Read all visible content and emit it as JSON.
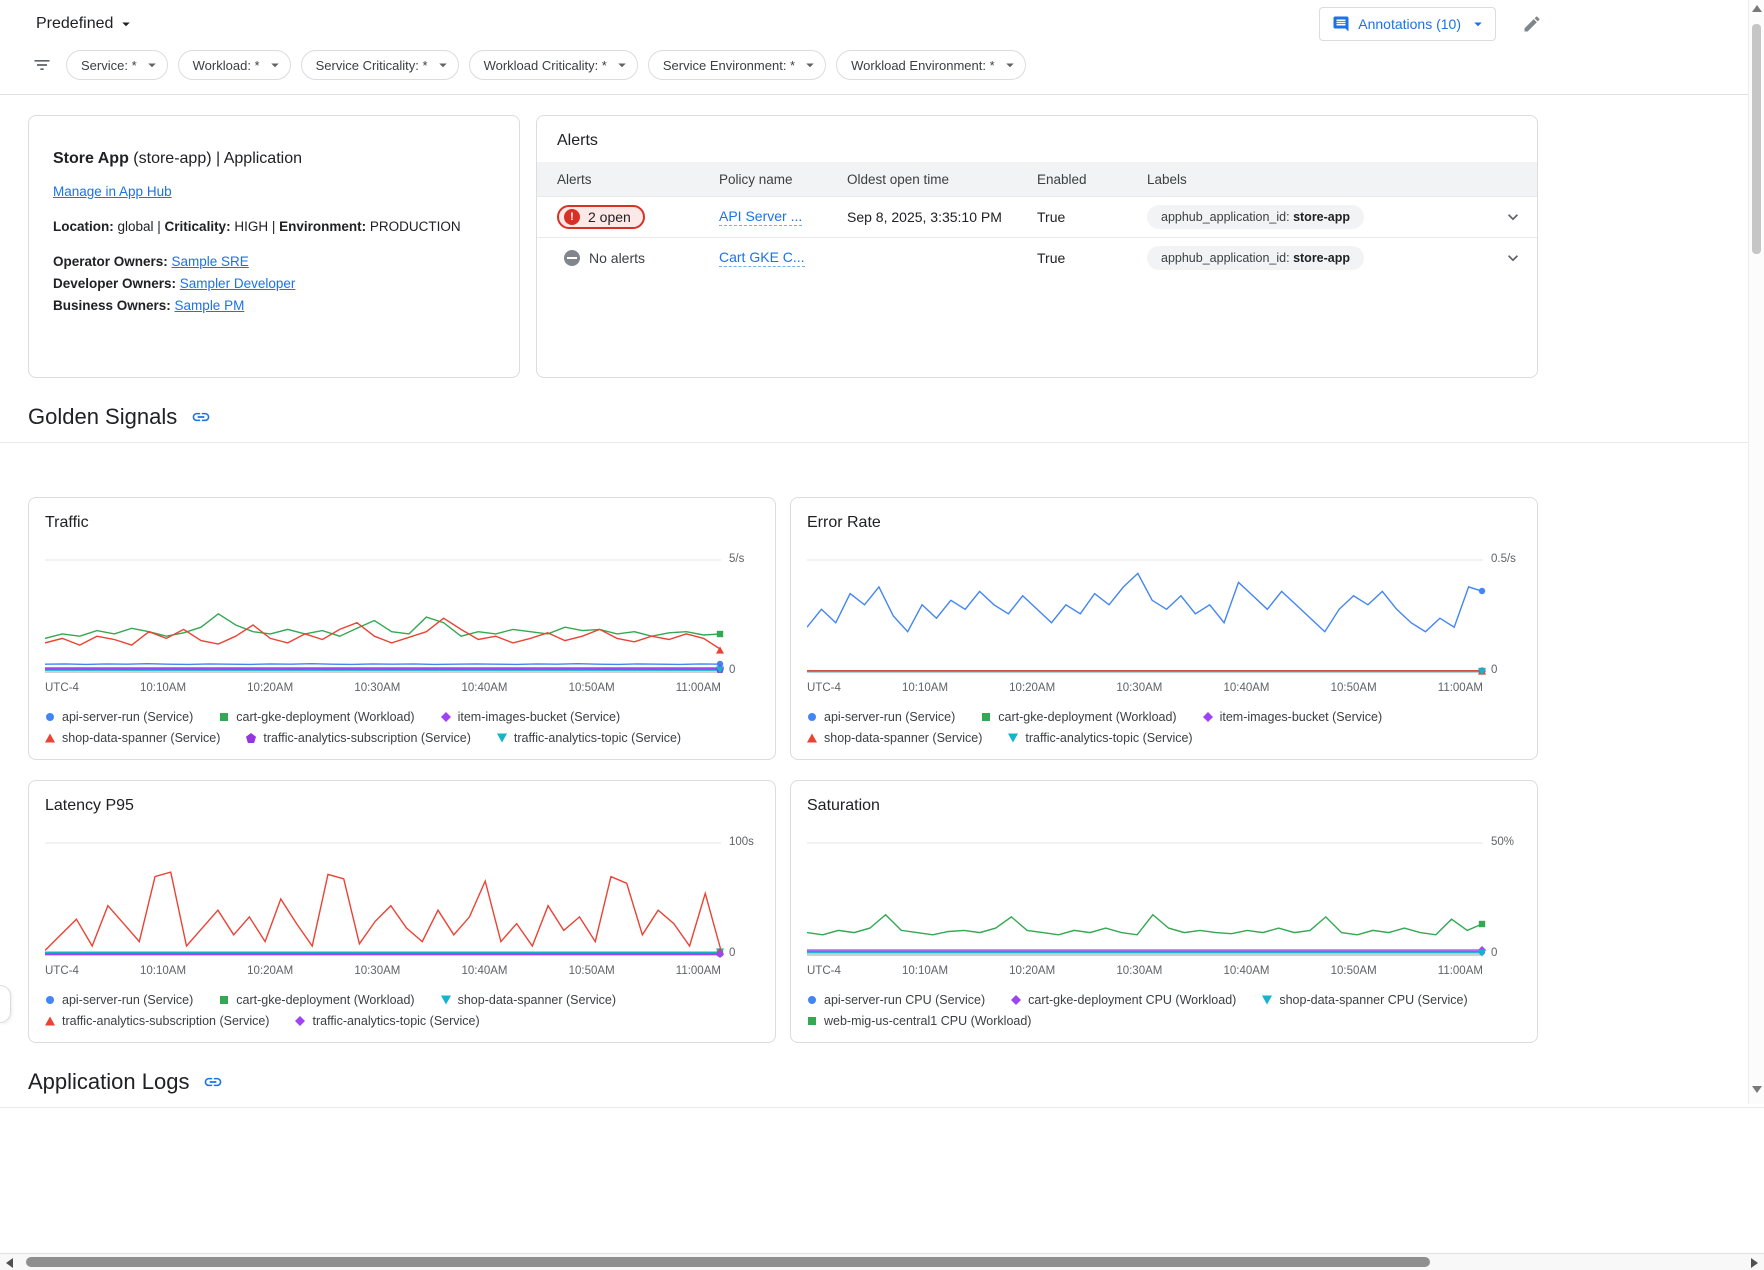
{
  "colors": {
    "link": "#1a73e8",
    "blue": "#4285f4",
    "green": "#34a853",
    "red": "#ea4335",
    "purple": "#a142f4",
    "dark_purple": "#9334e6",
    "teal": "#12b5cb",
    "alert_red": "#d93025"
  },
  "header": {
    "predefined_label": "Predefined",
    "annotations_label": "Annotations (10)"
  },
  "filters": {
    "chips": [
      "Service: *",
      "Workload: *",
      "Service Criticality: *",
      "Workload Criticality: *",
      "Service Environment: *",
      "Workload Environment: *"
    ]
  },
  "app_card": {
    "title_bold": "Store App",
    "title_rest": " (store-app) | Application",
    "manage_link": "Manage in App Hub",
    "meta_segments": [
      {
        "text": "Location:",
        "bold": true
      },
      {
        "text": " global | "
      },
      {
        "text": "Criticality:",
        "bold": true
      },
      {
        "text": " HIGH | "
      },
      {
        "text": "Environment:",
        "bold": true
      },
      {
        "text": " PRODUCTION"
      }
    ],
    "owners": [
      {
        "label": "Operator Owners: ",
        "link": "Sample SRE"
      },
      {
        "label": "Developer Owners: ",
        "link": "Sampler Developer"
      },
      {
        "label": "Business Owners: ",
        "link": "Sample PM"
      }
    ]
  },
  "alerts": {
    "title": "Alerts",
    "columns": [
      "Alerts",
      "Policy name",
      "Oldest open time",
      "Enabled",
      "Labels"
    ],
    "rows": [
      {
        "status": "open",
        "status_text": "2 open",
        "policy": "API Server ...",
        "time": "Sep 8, 2025, 3:35:10 PM",
        "enabled": "True",
        "label_key": "apphub_application_id: ",
        "label_value": "store-app"
      },
      {
        "status": "none",
        "status_text": "No alerts",
        "policy": "Cart GKE C...",
        "time": "",
        "enabled": "True",
        "label_key": "apphub_application_id: ",
        "label_value": "store-app"
      }
    ]
  },
  "sections": {
    "golden_signals": "Golden Signals",
    "application_logs": "Application Logs"
  },
  "chart_data": [
    {
      "type": "line",
      "title": "Traffic",
      "ymax": 5,
      "ymax_label": "5/s",
      "ymin_label": "0",
      "x_labels": [
        "UTC-4",
        "10:10AM",
        "10:20AM",
        "10:30AM",
        "10:40AM",
        "10:50AM",
        "11:00AM"
      ],
      "series": [
        {
          "name": "api-server-run (Service)",
          "shape": "circle",
          "color": "#4285f4",
          "values": [
            0.35,
            0.36,
            0.34,
            0.36,
            0.35,
            0.37,
            0.35,
            0.34,
            0.36,
            0.35,
            0.34,
            0.36,
            0.35,
            0.37,
            0.35,
            0.34,
            0.36,
            0.35,
            0.36,
            0.34,
            0.35,
            0.36,
            0.35,
            0.34,
            0.36,
            0.35,
            0.37,
            0.35,
            0.34,
            0.36,
            0.35,
            0.34,
            0.36,
            0.35
          ]
        },
        {
          "name": "cart-gke-deployment (Workload)",
          "shape": "square",
          "color": "#34a853",
          "values": [
            1.5,
            1.7,
            1.6,
            1.85,
            1.7,
            1.95,
            1.8,
            1.6,
            1.75,
            2.0,
            2.6,
            2.1,
            1.8,
            1.7,
            1.9,
            1.7,
            1.85,
            1.6,
            1.95,
            2.3,
            1.8,
            1.7,
            2.45,
            2.2,
            1.6,
            1.8,
            1.7,
            1.9,
            1.8,
            1.7,
            2.0,
            1.85,
            1.9,
            1.7,
            1.8,
            1.6,
            1.75,
            1.8,
            1.65,
            1.7
          ]
        },
        {
          "name": "item-images-bucket (Service)",
          "shape": "diamond",
          "color": "#a142f4",
          "values": [
            0.18,
            0.18,
            0.18,
            0.18,
            0.18,
            0.18,
            0.18,
            0.18,
            0.18,
            0.18,
            0.18,
            0.18
          ]
        },
        {
          "name": "shop-data-spanner (Service)",
          "shape": "triangle-up",
          "color": "#ea4335",
          "values": [
            1.3,
            1.5,
            1.2,
            1.6,
            1.45,
            1.2,
            1.8,
            1.5,
            1.9,
            1.4,
            1.25,
            1.6,
            2.1,
            1.5,
            1.3,
            1.7,
            1.45,
            1.9,
            2.2,
            1.6,
            1.3,
            1.55,
            1.8,
            2.4,
            1.9,
            1.45,
            1.6,
            1.3,
            1.5,
            1.75,
            1.4,
            1.6,
            1.9,
            1.5,
            1.35,
            1.6,
            1.45,
            1.7,
            1.5,
            1.0
          ]
        },
        {
          "name": "traffic-analytics-subscription (Service)",
          "shape": "pentagon",
          "color": "#9334e6",
          "values": [
            0.12,
            0.12,
            0.12,
            0.12,
            0.12,
            0.12,
            0.12,
            0.12,
            0.12,
            0.12,
            0.12,
            0.12
          ]
        },
        {
          "name": "traffic-analytics-topic (Service)",
          "shape": "triangle-down",
          "color": "#12b5cb",
          "values": [
            0.08,
            0.08,
            0.08,
            0.08,
            0.08,
            0.08,
            0.08,
            0.08,
            0.08,
            0.08,
            0.08,
            0.08
          ]
        }
      ]
    },
    {
      "type": "line",
      "title": "Error Rate",
      "ymax": 0.5,
      "ymax_label": "0.5/s",
      "ymin_label": "0",
      "x_labels": [
        "UTC-4",
        "10:10AM",
        "10:20AM",
        "10:30AM",
        "10:40AM",
        "10:50AM",
        "11:00AM"
      ],
      "series": [
        {
          "name": "api-server-run (Service)",
          "shape": "circle",
          "color": "#4285f4",
          "values": [
            0.2,
            0.28,
            0.22,
            0.35,
            0.3,
            0.38,
            0.25,
            0.18,
            0.3,
            0.24,
            0.32,
            0.28,
            0.36,
            0.3,
            0.26,
            0.34,
            0.28,
            0.22,
            0.3,
            0.26,
            0.35,
            0.3,
            0.38,
            0.44,
            0.32,
            0.28,
            0.34,
            0.26,
            0.3,
            0.22,
            0.4,
            0.34,
            0.28,
            0.36,
            0.3,
            0.24,
            0.18,
            0.28,
            0.34,
            0.3,
            0.36,
            0.28,
            0.22,
            0.18,
            0.24,
            0.2,
            0.38,
            0.36
          ]
        },
        {
          "name": "cart-gke-deployment (Workload)",
          "shape": "square",
          "color": "#34a853",
          "values": [
            0.004,
            0.004,
            0.004,
            0.004,
            0.004,
            0.004,
            0.004,
            0.004,
            0.004,
            0.004
          ]
        },
        {
          "name": "item-images-bucket (Service)",
          "shape": "diamond",
          "color": "#a142f4",
          "values": [
            0.003,
            0.003,
            0.003,
            0.003,
            0.003,
            0.003,
            0.003,
            0.003,
            0.003,
            0.003
          ]
        },
        {
          "name": "shop-data-spanner (Service)",
          "shape": "triangle-up",
          "color": "#ea4335",
          "values": [
            0.006,
            0.006,
            0.006,
            0.006,
            0.006,
            0.006,
            0.006,
            0.006,
            0.006,
            0.006
          ]
        },
        {
          "name": "traffic-analytics-topic (Service)",
          "shape": "triangle-down",
          "color": "#12b5cb",
          "values": [
            0.002,
            0.002,
            0.002,
            0.002,
            0.002,
            0.002,
            0.002,
            0.002,
            0.002,
            0.002
          ]
        }
      ]
    },
    {
      "type": "line",
      "title": "Latency P95",
      "ymax": 100,
      "ymax_label": "100s",
      "ymin_label": "0",
      "x_labels": [
        "UTC-4",
        "10:10AM",
        "10:20AM",
        "10:30AM",
        "10:40AM",
        "10:50AM",
        "11:00AM"
      ],
      "series": [
        {
          "name": "api-server-run (Service)",
          "shape": "circle",
          "color": "#4285f4",
          "values": [
            1.2,
            1.2,
            1.2,
            1.2,
            1.2,
            1.2,
            1.2,
            1.2,
            1.2,
            1.2,
            1.2,
            1.2
          ]
        },
        {
          "name": "cart-gke-deployment (Workload)",
          "shape": "square",
          "color": "#34a853",
          "values": [
            1.8,
            1.8,
            1.8,
            1.8,
            1.8,
            1.8,
            1.8,
            1.8,
            1.8,
            1.8,
            1.8,
            1.8
          ]
        },
        {
          "name": "shop-data-spanner (Service)",
          "shape": "triangle-down",
          "color": "#12b5cb",
          "values": [
            2.5,
            2.5,
            2.5,
            2.5,
            2.5,
            2.5,
            2.5,
            2.5,
            2.5,
            2.5,
            2.5,
            2.5
          ]
        },
        {
          "name": "traffic-analytics-subscription (Service)",
          "shape": "triangle-up",
          "color": "#ea4335",
          "values": [
            4,
            18,
            32,
            8,
            44,
            28,
            12,
            70,
            74,
            8,
            24,
            40,
            18,
            34,
            12,
            50,
            28,
            8,
            72,
            68,
            10,
            30,
            44,
            24,
            12,
            40,
            18,
            34,
            66,
            12,
            28,
            8,
            44,
            22,
            34,
            12,
            70,
            64,
            18,
            40,
            28,
            8,
            55,
            4
          ]
        },
        {
          "name": "traffic-analytics-topic (Service)",
          "shape": "diamond",
          "color": "#a142f4",
          "values": [
            0.6,
            0.6,
            0.6,
            0.6,
            0.6,
            0.6,
            0.6,
            0.6,
            0.6,
            0.6,
            0.6,
            0.6
          ]
        }
      ]
    },
    {
      "type": "line",
      "title": "Saturation",
      "ymax": 50,
      "ymax_label": "50%",
      "ymin_label": "0",
      "x_labels": [
        "UTC-4",
        "10:10AM",
        "10:20AM",
        "10:30AM",
        "10:40AM",
        "10:50AM",
        "11:00AM"
      ],
      "series": [
        {
          "name": "api-server-run CPU (Service)",
          "shape": "circle",
          "color": "#4285f4",
          "values": [
            1.5,
            1.5,
            1.5,
            1.5,
            1.5,
            1.5,
            1.5,
            1.5,
            1.5,
            1.5,
            1.5,
            1.5
          ]
        },
        {
          "name": "cart-gke-deployment CPU (Workload)",
          "shape": "diamond",
          "color": "#a142f4",
          "values": [
            2.2,
            2.2,
            2.2,
            2.2,
            2.2,
            2.2,
            2.2,
            2.2,
            2.2,
            2.2,
            2.2,
            2.2
          ]
        },
        {
          "name": "shop-data-spanner CPU (Service)",
          "shape": "triangle-down",
          "color": "#12b5cb",
          "values": [
            1.0,
            1.0,
            1.0,
            1.0,
            1.0,
            1.0,
            1.0,
            1.0,
            1.0,
            1.0,
            1.0,
            1.0
          ]
        },
        {
          "name": "web-mig-us-central1 CPU (Workload)",
          "shape": "square",
          "color": "#34a853",
          "values": [
            10,
            9,
            11,
            10,
            12,
            18,
            11,
            10,
            9,
            10.5,
            11,
            10,
            12,
            17,
            11,
            10,
            9,
            11,
            10,
            12,
            10,
            9,
            18,
            12,
            10,
            11,
            10,
            9.5,
            11,
            10,
            12,
            10,
            11,
            17,
            10,
            9,
            11,
            10,
            12,
            10,
            9,
            16,
            11,
            14
          ]
        }
      ]
    }
  ]
}
